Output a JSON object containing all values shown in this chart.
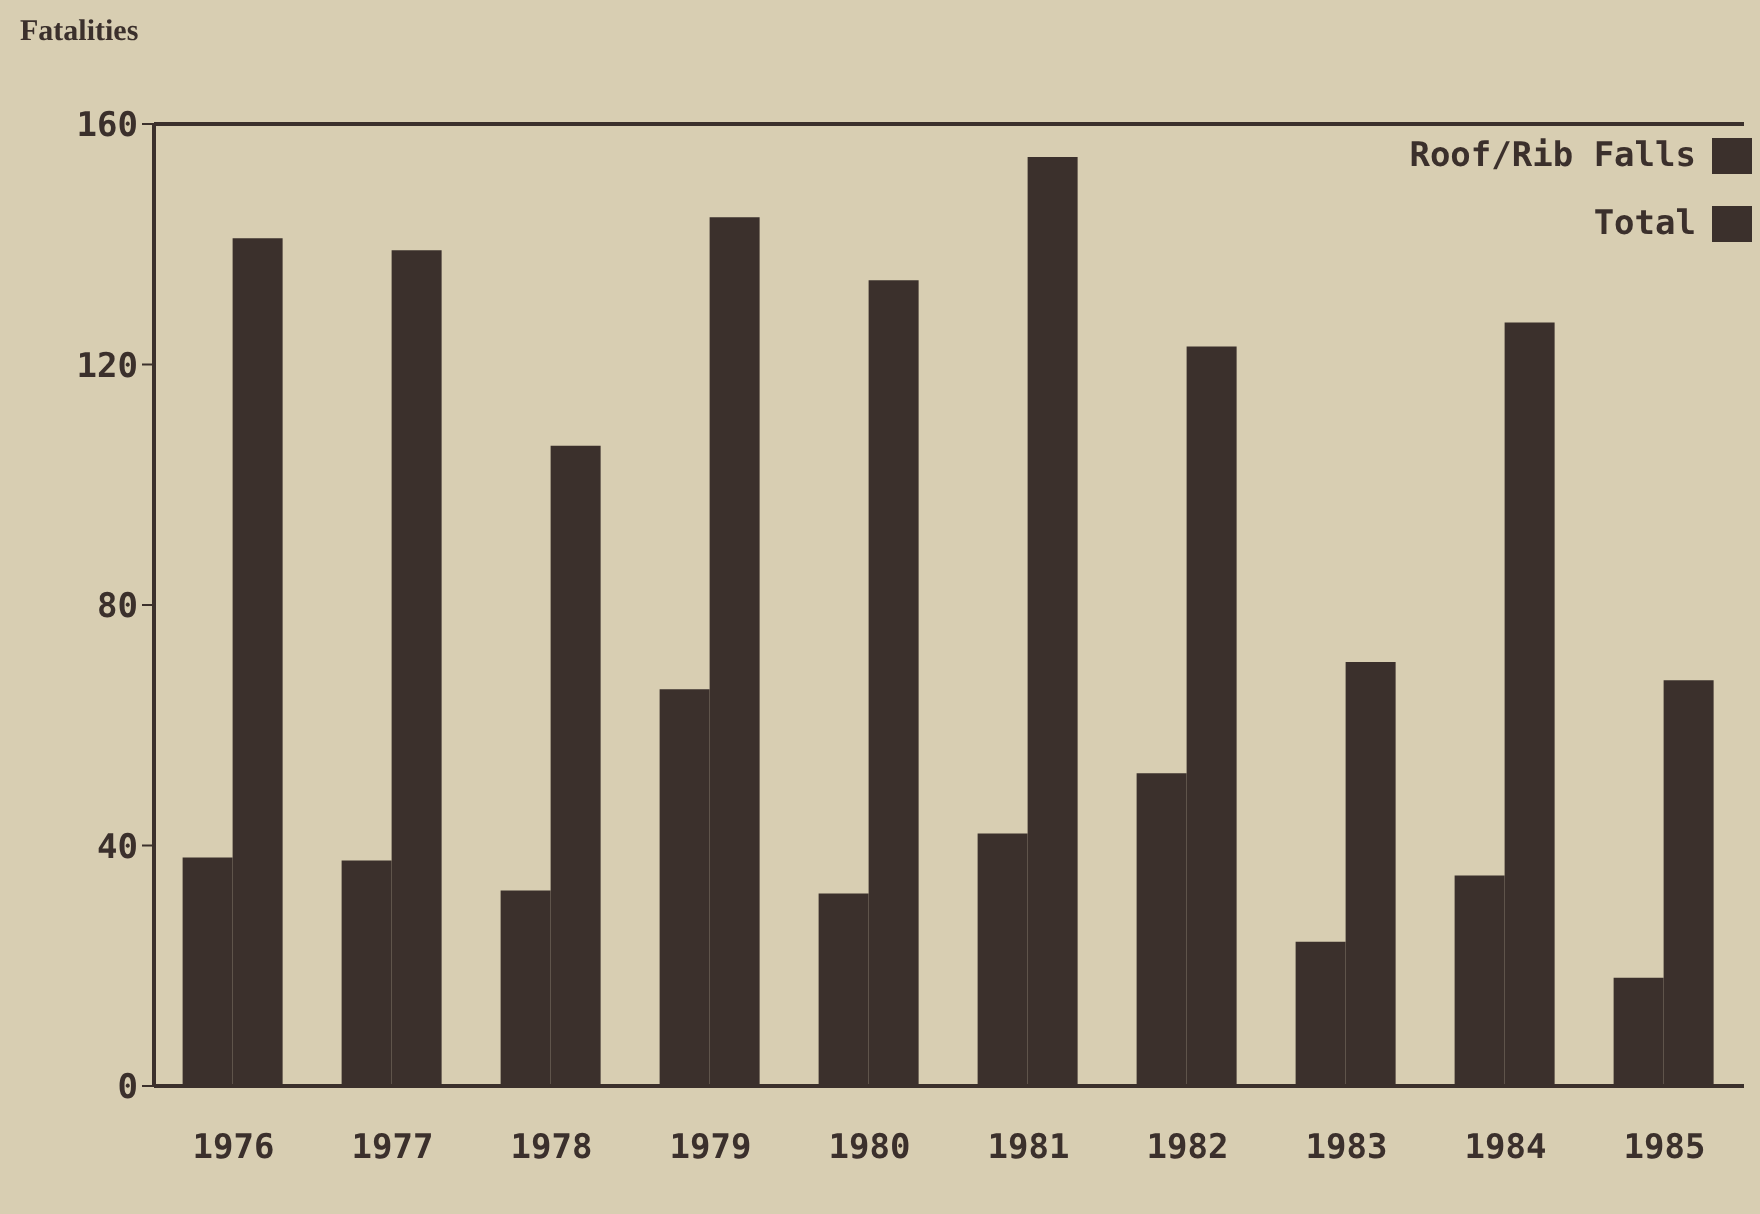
{
  "chart_data": {
    "type": "bar",
    "ylabel": "Fatalities",
    "categories": [
      "1976",
      "1977",
      "1978",
      "1979",
      "1980",
      "1981",
      "1982",
      "1983",
      "1984",
      "1985"
    ],
    "series": [
      {
        "name": "Roof/Rib Falls",
        "color": "#3b302c",
        "values": [
          38,
          37.5,
          32.5,
          66,
          32,
          42,
          52,
          24,
          35,
          18
        ]
      },
      {
        "name": "Total",
        "color": "#3b302c",
        "values": [
          141,
          139,
          106.5,
          144.5,
          134,
          154.5,
          123,
          70.5,
          127,
          67.5
        ]
      }
    ],
    "ylim": [
      0,
      160
    ],
    "yticks": [
      0,
      40,
      80,
      120,
      160
    ],
    "legend": "top right"
  }
}
